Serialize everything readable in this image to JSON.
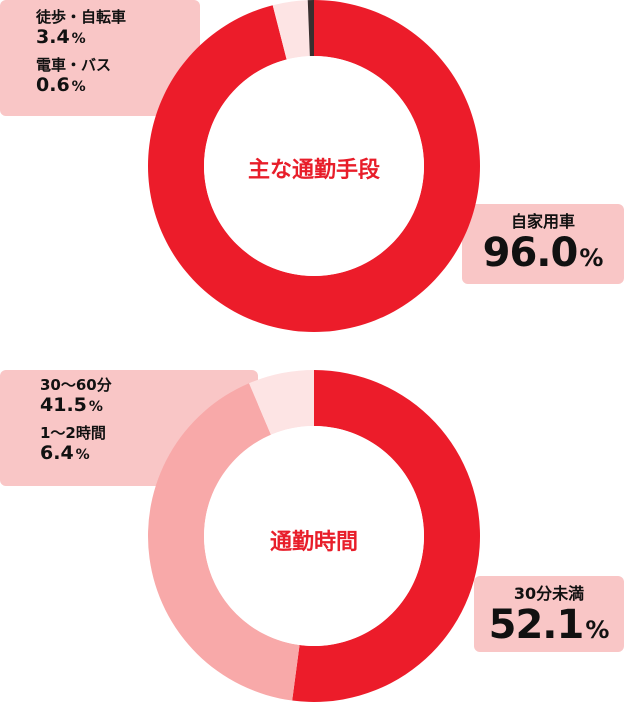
{
  "chart_data": [
    {
      "type": "pie",
      "title": "主な通勤手段",
      "slices": [
        {
          "label": "自家用車",
          "value": 96.0,
          "color": "#ec1c2a"
        },
        {
          "label": "徒歩・自転車",
          "value": 3.4,
          "color": "#fde4e4"
        },
        {
          "label": "電車・バス",
          "value": 0.6,
          "color": "#3a2f2f"
        }
      ],
      "unit": "%"
    },
    {
      "type": "pie",
      "title": "通勤時間",
      "slices": [
        {
          "label": "30分未満",
          "value": 52.1,
          "color": "#ec1c2a"
        },
        {
          "label": "30〜60分",
          "value": 41.5,
          "color": "#f8a9a9"
        },
        {
          "label": "1〜2時間",
          "value": 6.4,
          "color": "#fde4e4"
        }
      ],
      "unit": "%"
    }
  ],
  "labels": {
    "c1_walk_name": "徒歩・自転車",
    "c1_walk_value": "3.4",
    "c1_train_name": "電車・バス",
    "c1_train_value": "0.6",
    "c1_car_name": "自家用車",
    "c1_car_value": "96.0",
    "c2_mid_name": "30〜60分",
    "c2_mid_value": "41.5",
    "c2_long_name": "1〜2時間",
    "c2_long_value": "6.4",
    "c2_short_name": "30分未満",
    "c2_short_value": "52.1",
    "pct": "%"
  }
}
